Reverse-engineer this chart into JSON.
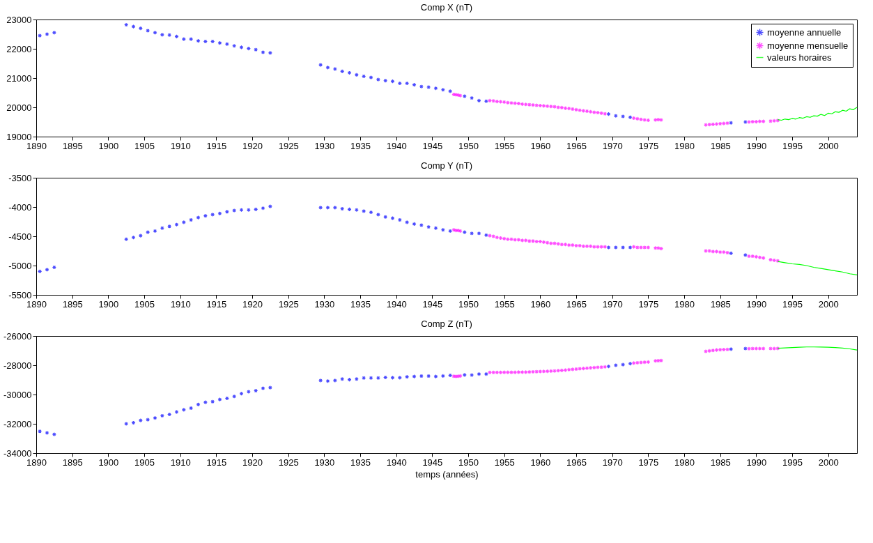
{
  "chart_data": [
    {
      "type": "scatter",
      "title": "Comp X (nT)",
      "legend": "top right",
      "grid": false,
      "xlim": [
        1890,
        2004
      ],
      "xticks": [
        1890,
        1895,
        1900,
        1905,
        1910,
        1915,
        1920,
        1925,
        1930,
        1935,
        1940,
        1945,
        1950,
        1955,
        1960,
        1965,
        1970,
        1975,
        1980,
        1985,
        1990,
        1995,
        2000
      ],
      "ylim": [
        19000,
        23000
      ],
      "yticks": [
        19000,
        20000,
        21000,
        22000,
        23000
      ],
      "series": [
        {
          "name": "moyenne annuelle",
          "color": "#0000ff",
          "marker": "cross",
          "x": [
            1890.5,
            1891.5,
            1892.5,
            1902.5,
            1903.5,
            1904.5,
            1905.5,
            1906.5,
            1907.5,
            1908.5,
            1909.5,
            1910.5,
            1911.5,
            1912.5,
            1913.5,
            1914.5,
            1915.5,
            1916.5,
            1917.5,
            1918.5,
            1919.5,
            1920.5,
            1921.5,
            1922.5,
            1929.5,
            1930.5,
            1931.5,
            1932.5,
            1933.5,
            1934.5,
            1935.5,
            1936.5,
            1937.5,
            1938.5,
            1939.5,
            1940.5,
            1941.5,
            1942.5,
            1943.5,
            1944.5,
            1945.5,
            1946.5,
            1947.5,
            1949.5,
            1950.5,
            1951.5,
            1952.5,
            1969.5,
            1970.5,
            1971.5,
            1972.5,
            1986.5,
            1988.5
          ],
          "values": [
            22450,
            22500,
            22550,
            22820,
            22760,
            22700,
            22620,
            22550,
            22480,
            22470,
            22420,
            22330,
            22330,
            22270,
            22250,
            22250,
            22200,
            22160,
            22100,
            22050,
            22010,
            21970,
            21880,
            21860,
            21450,
            21360,
            21310,
            21230,
            21180,
            21110,
            21060,
            21020,
            20950,
            20910,
            20890,
            20820,
            20820,
            20770,
            20710,
            20690,
            20650,
            20600,
            20550,
            20380,
            20320,
            20230,
            20210,
            19770,
            19710,
            19690,
            19660,
            19470,
            19500
          ]
        },
        {
          "name": "moyenne mensuelle",
          "color": "#ff00ff",
          "marker": "cross",
          "x": [
            1948.0,
            1948.3,
            1948.6,
            1948.9,
            1953.0,
            1953.5,
            1954.0,
            1954.5,
            1955.0,
            1955.5,
            1956.0,
            1956.5,
            1957.0,
            1957.5,
            1958.0,
            1958.5,
            1959.0,
            1959.5,
            1960.0,
            1960.5,
            1961.0,
            1961.5,
            1962.0,
            1962.5,
            1963.0,
            1963.5,
            1964.0,
            1964.5,
            1965.0,
            1965.5,
            1966.0,
            1966.5,
            1967.0,
            1967.5,
            1968.0,
            1968.5,
            1969.0,
            1973.0,
            1973.5,
            1974.0,
            1974.5,
            1975.0,
            1976.0,
            1976.4,
            1976.8,
            1983.0,
            1983.5,
            1984.0,
            1984.5,
            1985.0,
            1985.5,
            1986.0,
            1989.0,
            1989.5,
            1990.0,
            1990.5,
            1991.0,
            1992.0,
            1992.5,
            1993.0
          ],
          "values": [
            20440,
            20430,
            20420,
            20400,
            20230,
            20220,
            20200,
            20190,
            20180,
            20160,
            20150,
            20140,
            20130,
            20110,
            20100,
            20090,
            20080,
            20070,
            20060,
            20050,
            20040,
            20030,
            20020,
            20000,
            19990,
            19970,
            19960,
            19940,
            19920,
            19900,
            19880,
            19870,
            19850,
            19830,
            19820,
            19800,
            19780,
            19630,
            19610,
            19590,
            19570,
            19560,
            19570,
            19580,
            19570,
            19400,
            19410,
            19420,
            19430,
            19440,
            19450,
            19460,
            19500,
            19510,
            19510,
            19520,
            19520,
            19530,
            19540,
            19550
          ]
        },
        {
          "name": "valeurs horaires",
          "type": "line",
          "color": "#00ff00",
          "x": [
            1993.0,
            1993.5,
            1994.0,
            1994.5,
            1995.0,
            1995.5,
            1996.0,
            1996.5,
            1997.0,
            1997.5,
            1998.0,
            1998.5,
            1999.0,
            1999.5,
            2000.0,
            2000.5,
            2001.0,
            2001.5,
            2002.0,
            2002.5,
            2003.0,
            2003.5,
            2004.0
          ],
          "values": [
            19580,
            19560,
            19600,
            19580,
            19620,
            19600,
            19650,
            19630,
            19680,
            19660,
            19710,
            19700,
            19760,
            19720,
            19800,
            19780,
            19850,
            19830,
            19900,
            19870,
            19950,
            19920,
            20000
          ]
        }
      ]
    },
    {
      "type": "scatter",
      "title": "Comp Y (nT)",
      "grid": false,
      "xlim": [
        1890,
        2004
      ],
      "xticks": [
        1890,
        1895,
        1900,
        1905,
        1910,
        1915,
        1920,
        1925,
        1930,
        1935,
        1940,
        1945,
        1950,
        1955,
        1960,
        1965,
        1970,
        1975,
        1980,
        1985,
        1990,
        1995,
        2000
      ],
      "ylim": [
        -5500,
        -3500
      ],
      "yticks": [
        -5500,
        -5000,
        -4500,
        -4000,
        -3500
      ],
      "series": [
        {
          "color": "#0000ff",
          "x": [
            1890.5,
            1891.5,
            1892.5,
            1902.5,
            1903.5,
            1904.5,
            1905.5,
            1906.5,
            1907.5,
            1908.5,
            1909.5,
            1910.5,
            1911.5,
            1912.5,
            1913.5,
            1914.5,
            1915.5,
            1916.5,
            1917.5,
            1918.5,
            1919.5,
            1920.5,
            1921.5,
            1922.5,
            1929.5,
            1930.5,
            1931.5,
            1932.5,
            1933.5,
            1934.5,
            1935.5,
            1936.5,
            1937.5,
            1938.5,
            1939.5,
            1940.5,
            1941.5,
            1942.5,
            1943.5,
            1944.5,
            1945.5,
            1946.5,
            1947.5,
            1949.5,
            1950.5,
            1951.5,
            1952.5,
            1969.5,
            1970.5,
            1971.5,
            1972.5,
            1986.5,
            1988.5
          ],
          "marker": "cross",
          "values": [
            -5100,
            -5070,
            -5030,
            -4550,
            -4520,
            -4490,
            -4430,
            -4410,
            -4360,
            -4330,
            -4300,
            -4260,
            -4220,
            -4180,
            -4150,
            -4130,
            -4110,
            -4080,
            -4060,
            -4050,
            -4050,
            -4040,
            -4020,
            -3990,
            -4010,
            -4010,
            -4010,
            -4030,
            -4040,
            -4050,
            -4070,
            -4090,
            -4130,
            -4170,
            -4190,
            -4220,
            -4260,
            -4290,
            -4310,
            -4340,
            -4360,
            -4390,
            -4410,
            -4430,
            -4450,
            -4450,
            -4480,
            -4690,
            -4690,
            -4690,
            -4690,
            -4790,
            -4820
          ]
        },
        {
          "color": "#ff00ff",
          "x": [
            1948.0,
            1948.3,
            1948.6,
            1948.9,
            1953.0,
            1953.5,
            1954.0,
            1954.5,
            1955.0,
            1955.5,
            1956.0,
            1956.5,
            1957.0,
            1957.5,
            1958.0,
            1958.5,
            1959.0,
            1959.5,
            1960.0,
            1960.5,
            1961.0,
            1961.5,
            1962.0,
            1962.5,
            1963.0,
            1963.5,
            1964.0,
            1964.5,
            1965.0,
            1965.5,
            1966.0,
            1966.5,
            1967.0,
            1967.5,
            1968.0,
            1968.5,
            1969.0,
            1973.0,
            1973.5,
            1974.0,
            1974.5,
            1975.0,
            1976.0,
            1976.4,
            1976.8,
            1983.0,
            1983.5,
            1984.0,
            1984.5,
            1985.0,
            1985.5,
            1986.0,
            1989.0,
            1989.5,
            1990.0,
            1990.5,
            1991.0,
            1992.0,
            1992.5,
            1993.0
          ],
          "marker": "cross",
          "values": [
            -4390,
            -4400,
            -4400,
            -4410,
            -4490,
            -4500,
            -4520,
            -4530,
            -4540,
            -4550,
            -4550,
            -4560,
            -4560,
            -4570,
            -4570,
            -4580,
            -4580,
            -4590,
            -4590,
            -4600,
            -4610,
            -4620,
            -4620,
            -4630,
            -4640,
            -4640,
            -4650,
            -4650,
            -4660,
            -4660,
            -4670,
            -4670,
            -4670,
            -4680,
            -4680,
            -4680,
            -4680,
            -4680,
            -4690,
            -4690,
            -4690,
            -4690,
            -4700,
            -4700,
            -4710,
            -4750,
            -4750,
            -4760,
            -4760,
            -4770,
            -4770,
            -4780,
            -4840,
            -4840,
            -4850,
            -4860,
            -4870,
            -4900,
            -4910,
            -4920
          ]
        },
        {
          "type": "line",
          "color": "#00ff00",
          "x": [
            1993,
            1994,
            1995,
            1996,
            1997,
            1998,
            1999,
            2000,
            2001,
            2002,
            2003,
            2004
          ],
          "values": [
            -4930,
            -4950,
            -4970,
            -4980,
            -5000,
            -5030,
            -5050,
            -5070,
            -5090,
            -5110,
            -5140,
            -5160
          ]
        }
      ]
    },
    {
      "type": "scatter",
      "title": "Comp Z (nT)",
      "xlabel": "temps (années)",
      "grid": false,
      "xlim": [
        1890,
        2004
      ],
      "xticks": [
        1890,
        1895,
        1900,
        1905,
        1910,
        1915,
        1920,
        1925,
        1930,
        1935,
        1940,
        1945,
        1950,
        1955,
        1960,
        1965,
        1970,
        1975,
        1980,
        1985,
        1990,
        1995,
        2000
      ],
      "ylim": [
        -34000,
        -26000
      ],
      "yticks": [
        -34000,
        -32000,
        -30000,
        -28000,
        -26000
      ],
      "series": [
        {
          "color": "#0000ff",
          "x": [
            1890.5,
            1891.5,
            1892.5,
            1902.5,
            1903.5,
            1904.5,
            1905.5,
            1906.5,
            1907.5,
            1908.5,
            1909.5,
            1910.5,
            1911.5,
            1912.5,
            1913.5,
            1914.5,
            1915.5,
            1916.5,
            1917.5,
            1918.5,
            1919.5,
            1920.5,
            1921.5,
            1922.5,
            1929.5,
            1930.5,
            1931.5,
            1932.5,
            1933.5,
            1934.5,
            1935.5,
            1936.5,
            1937.5,
            1938.5,
            1939.5,
            1940.5,
            1941.5,
            1942.5,
            1943.5,
            1944.5,
            1945.5,
            1946.5,
            1947.5,
            1949.5,
            1950.5,
            1951.5,
            1952.5,
            1969.5,
            1970.5,
            1971.5,
            1972.5,
            1986.5,
            1988.5
          ],
          "marker": "cross",
          "values": [
            -32510,
            -32620,
            -32720,
            -32000,
            -31930,
            -31770,
            -31720,
            -31600,
            -31450,
            -31360,
            -31190,
            -31040,
            -30930,
            -30680,
            -30530,
            -30490,
            -30340,
            -30260,
            -30130,
            -29940,
            -29810,
            -29740,
            -29570,
            -29530,
            -29040,
            -29080,
            -29040,
            -28940,
            -28980,
            -28940,
            -28870,
            -28870,
            -28870,
            -28830,
            -28850,
            -28850,
            -28790,
            -28770,
            -28740,
            -28740,
            -28770,
            -28730,
            -28690,
            -28660,
            -28670,
            -28600,
            -28600,
            -28080,
            -28000,
            -27960,
            -27890,
            -26900,
            -26860
          ]
        },
        {
          "color": "#ff00ff",
          "x": [
            1948.0,
            1948.3,
            1948.6,
            1948.9,
            1953.0,
            1953.5,
            1954.0,
            1954.5,
            1955.0,
            1955.5,
            1956.0,
            1956.5,
            1957.0,
            1957.5,
            1958.0,
            1958.5,
            1959.0,
            1959.5,
            1960.0,
            1960.5,
            1961.0,
            1961.5,
            1962.0,
            1962.5,
            1963.0,
            1963.5,
            1964.0,
            1964.5,
            1965.0,
            1965.5,
            1966.0,
            1966.5,
            1967.0,
            1967.5,
            1968.0,
            1968.5,
            1969.0,
            1973.0,
            1973.5,
            1974.0,
            1974.5,
            1975.0,
            1976.0,
            1976.4,
            1976.8,
            1983.0,
            1983.5,
            1984.0,
            1984.5,
            1985.0,
            1985.5,
            1986.0,
            1989.0,
            1989.5,
            1990.0,
            1990.5,
            1991.0,
            1992.0,
            1992.5,
            1993.0
          ],
          "marker": "cross",
          "values": [
            -28750,
            -28760,
            -28750,
            -28730,
            -28490,
            -28490,
            -28490,
            -28490,
            -28480,
            -28480,
            -28480,
            -28480,
            -28470,
            -28470,
            -28470,
            -28460,
            -28450,
            -28440,
            -28430,
            -28420,
            -28410,
            -28400,
            -28390,
            -28370,
            -28350,
            -28330,
            -28300,
            -28280,
            -28260,
            -28240,
            -28220,
            -28200,
            -28180,
            -28160,
            -28140,
            -28130,
            -28110,
            -27850,
            -27830,
            -27810,
            -27790,
            -27780,
            -27700,
            -27690,
            -27680,
            -27050,
            -27020,
            -26990,
            -26960,
            -26940,
            -26930,
            -26920,
            -26870,
            -26860,
            -26860,
            -26860,
            -26860,
            -26860,
            -26860,
            -26850
          ]
        },
        {
          "type": "line",
          "color": "#00ff00",
          "x": [
            1993,
            1994,
            1995,
            1996,
            1997,
            1998,
            1999,
            2000,
            2001,
            2002,
            2003,
            2004
          ],
          "values": [
            -26840,
            -26820,
            -26790,
            -26770,
            -26750,
            -26750,
            -26760,
            -26770,
            -26790,
            -26830,
            -26880,
            -26960
          ]
        }
      ]
    }
  ]
}
